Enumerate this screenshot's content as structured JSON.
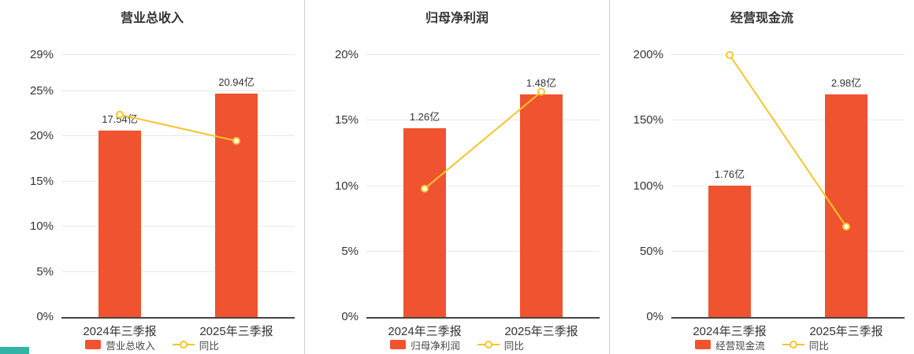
{
  "colors": {
    "bar": "#f0532f",
    "line": "#f5c52b",
    "marker_fill": "#ffffff",
    "axis": "#444444",
    "gridline": "#e8e8e8",
    "divider": "#cccccc",
    "text": "#333333",
    "corner_accent": "#33b3a6"
  },
  "chart_data": [
    {
      "type": "bar",
      "title": "营业总收入",
      "categories": [
        "2024年三季报",
        "2025年三季报"
      ],
      "bar_series": {
        "name": "营业总收入",
        "value_labels": [
          "17.54亿",
          "20.94亿"
        ],
        "values_yi": [
          17.54,
          20.94
        ],
        "bar_top_on_pct_axis": [
          20.6,
          24.7
        ]
      },
      "line_series": {
        "name": "同比",
        "values_pct": [
          22.4,
          19.5
        ]
      },
      "y_axis": {
        "max": 29,
        "ticks": [
          0,
          5,
          10,
          15,
          20,
          25,
          29
        ],
        "tick_labels": [
          "0%",
          "5%",
          "10%",
          "15%",
          "20%",
          "25%",
          "29%"
        ]
      },
      "legend_position": "bottom",
      "grid": true
    },
    {
      "type": "bar",
      "title": "归母净利润",
      "categories": [
        "2024年三季报",
        "2025年三季报"
      ],
      "bar_series": {
        "name": "归母净利润",
        "value_labels": [
          "1.26亿",
          "1.48亿"
        ],
        "values_yi": [
          1.26,
          1.48
        ],
        "bar_top_on_pct_axis": [
          14.4,
          17.0
        ]
      },
      "line_series": {
        "name": "同比",
        "values_pct": [
          9.8,
          17.2
        ]
      },
      "y_axis": {
        "max": 20,
        "ticks": [
          0,
          5,
          10,
          15,
          20
        ],
        "tick_labels": [
          "0%",
          "5%",
          "10%",
          "15%",
          "20%"
        ]
      },
      "legend_position": "bottom",
      "grid": true
    },
    {
      "type": "bar",
      "title": "经营现金流",
      "categories": [
        "2024年三季报",
        "2025年三季报"
      ],
      "bar_series": {
        "name": "经营现金流",
        "value_labels": [
          "1.76亿",
          "2.98亿"
        ],
        "values_yi": [
          1.76,
          2.98
        ],
        "bar_top_on_pct_axis": [
          100,
          170
        ]
      },
      "line_series": {
        "name": "同比",
        "values_pct": [
          200,
          69
        ]
      },
      "y_axis": {
        "max": 200,
        "ticks": [
          0,
          50,
          100,
          150,
          200
        ],
        "tick_labels": [
          "0%",
          "50%",
          "100%",
          "150%",
          "200%"
        ]
      },
      "legend_position": "bottom",
      "grid": true
    }
  ]
}
